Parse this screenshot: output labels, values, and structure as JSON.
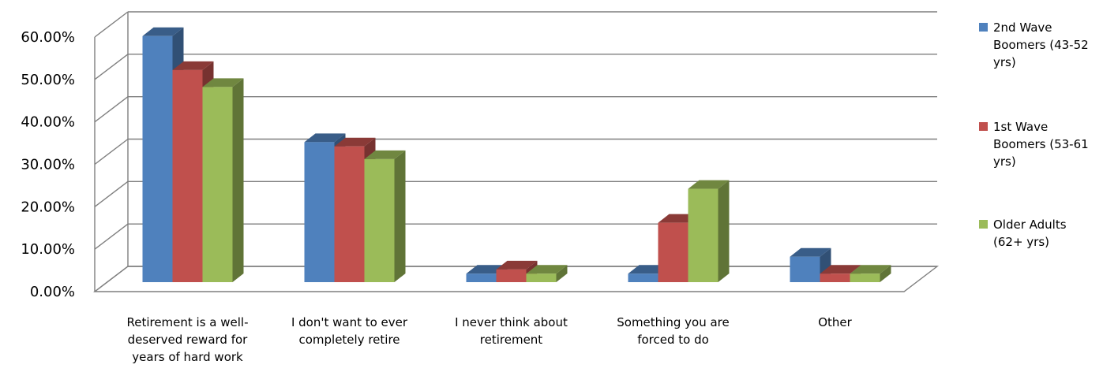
{
  "chart_data": {
    "type": "bar",
    "title": "",
    "xlabel": "",
    "ylabel": "",
    "ylim": [
      0,
      0.6
    ],
    "y_ticks": [
      "0.00%",
      "10.00%",
      "20.00%",
      "30.00%",
      "40.00%",
      "50.00%",
      "60.00%"
    ],
    "categories": [
      "Retirement is a well-deserved reward for years of hard work",
      "I don't want to ever completely retire",
      "I never think about retirement",
      "Something you are forced to do",
      "Other"
    ],
    "category_lines": [
      [
        "Retirement is a well-",
        "deserved reward for",
        "years of hard work"
      ],
      [
        "I don't want to ever",
        "completely retire"
      ],
      [
        "I never think about",
        "retirement"
      ],
      [
        "Something you are",
        "forced to do"
      ],
      [
        "Other"
      ]
    ],
    "series": [
      {
        "name": "2nd Wave Boomers (43-52 yrs)",
        "color": "#4F81BD",
        "values": [
          0.58,
          0.33,
          0.02,
          0.02,
          0.06
        ]
      },
      {
        "name": "1st Wave Boomers (53-61 yrs)",
        "color": "#C0504D",
        "values": [
          0.5,
          0.32,
          0.03,
          0.14,
          0.02
        ]
      },
      {
        "name": "Older Adults (62+ yrs)",
        "color": "#9BBB59",
        "values": [
          0.46,
          0.29,
          0.02,
          0.22,
          0.02
        ]
      }
    ],
    "legend_lines": [
      [
        "2nd Wave",
        "Boomers (43-52",
        "yrs)"
      ],
      [
        "1st Wave",
        "Boomers (53-61",
        "yrs)"
      ],
      [
        "Older Adults",
        "(62+ yrs)"
      ]
    ],
    "legend_position": "right",
    "grid": true
  }
}
